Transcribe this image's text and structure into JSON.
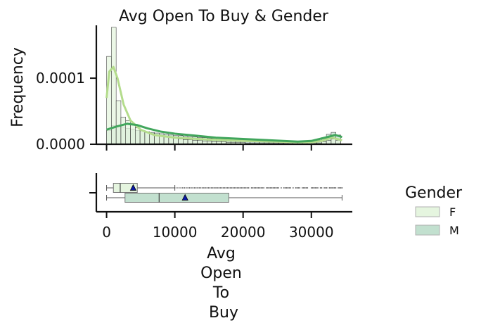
{
  "chart_data": {
    "type": "histogram",
    "title": "Avg Open To Buy & Gender",
    "ylabel": "Frequency",
    "xlabel_lines": [
      "Avg",
      "Open",
      "To",
      "Buy"
    ],
    "xlim": [
      -1500,
      36000
    ],
    "ylim": [
      0,
      0.00018
    ],
    "x_ticks": [
      0,
      10000,
      20000,
      30000
    ],
    "x_tick_labels": [
      "0",
      "10000",
      "20000",
      "30000"
    ],
    "y_ticks": [
      0,
      0.0001
    ],
    "y_tick_labels": [
      "0.0000",
      "0.0001"
    ],
    "bin_width": 700,
    "series": [
      {
        "name": "F",
        "color": "#e5f5df",
        "kde_color": "#b4dc8c",
        "hist_density": [
          0.000133,
          0.000177,
          6.6e-05,
          4.1e-05,
          3.6e-05,
          2.9e-05,
          2.5e-05,
          2.1e-05,
          1.8e-05,
          1.6e-05,
          1.4e-05,
          1.2e-05,
          1.1e-05,
          1e-05,
          9e-06,
          8e-06,
          7e-06,
          7e-06,
          6e-06,
          6e-06,
          5e-06,
          5e-06,
          4e-06,
          4e-06,
          4e-06,
          3e-06,
          3e-06,
          3e-06,
          3e-06,
          2e-06,
          2e-06,
          2e-06,
          2e-06,
          2e-06,
          2e-06,
          2e-06,
          2e-06,
          2e-06,
          2e-06,
          2e-06,
          2e-06,
          2e-06,
          2e-06,
          2e-06,
          2e-06,
          4e-06,
          6e-06,
          8e-06,
          6e-06
        ],
        "kde": [
          [
            0,
            7e-05
          ],
          [
            400,
            0.00011
          ],
          [
            1000,
            0.000117
          ],
          [
            1600,
            0.0001
          ],
          [
            2500,
            6e-05
          ],
          [
            3500,
            3.6e-05
          ],
          [
            5000,
            2.2e-05
          ],
          [
            7000,
            1.4e-05
          ],
          [
            10000,
            1e-05
          ],
          [
            15000,
            7e-06
          ],
          [
            20000,
            5e-06
          ],
          [
            25000,
            4e-06
          ],
          [
            28000,
            3e-06
          ],
          [
            30000,
            3e-06
          ],
          [
            31500,
            5e-06
          ],
          [
            33000,
            1e-05
          ],
          [
            34500,
            6e-06
          ]
        ],
        "box": {
          "whisker_low": 0,
          "q1": 1000,
          "median": 2000,
          "q3": 4500,
          "whisker_high": 10000,
          "mean": 3900,
          "outliers_range": [
            10000,
            34500
          ]
        }
      },
      {
        "name": "M",
        "color": "#c2e0cf",
        "kde_color": "#41a65c",
        "hist_density": [
          2.1e-05,
          2.8e-05,
          2.7e-05,
          2.6e-05,
          2.4e-05,
          2.3e-05,
          2.1e-05,
          2e-05,
          1.9e-05,
          1.8e-05,
          1.7e-05,
          1.6e-05,
          1.5e-05,
          1.4e-05,
          1.3e-05,
          1.3e-05,
          1.2e-05,
          1.1e-05,
          1.1e-05,
          1e-05,
          1e-05,
          9e-06,
          9e-06,
          9e-06,
          8e-06,
          8e-06,
          8e-06,
          7e-06,
          7e-06,
          7e-06,
          6e-06,
          6e-06,
          6e-06,
          6e-06,
          5e-06,
          5e-06,
          5e-06,
          5e-06,
          5e-06,
          5e-06,
          5e-06,
          5e-06,
          4e-06,
          5e-06,
          6e-06,
          1e-05,
          1.5e-05,
          1.8e-05,
          1.4e-05
        ],
        "kde": [
          [
            0,
            2.2e-05
          ],
          [
            1500,
            2.7e-05
          ],
          [
            3000,
            3.1e-05
          ],
          [
            4500,
            2.9e-05
          ],
          [
            6000,
            2.4e-05
          ],
          [
            8000,
            1.9e-05
          ],
          [
            10000,
            1.6e-05
          ],
          [
            13000,
            1.3e-05
          ],
          [
            16000,
            1e-05
          ],
          [
            20000,
            8e-06
          ],
          [
            24000,
            6e-06
          ],
          [
            28000,
            4e-06
          ],
          [
            30000,
            5e-06
          ],
          [
            32000,
            1e-05
          ],
          [
            33500,
            1.4e-05
          ],
          [
            34500,
            1.1e-05
          ]
        ],
        "box": {
          "whisker_low": 0,
          "q1": 2700,
          "median": 7700,
          "q3": 17900,
          "whisker_high": 34500,
          "mean": 11500
        }
      }
    ],
    "legend": {
      "title": "Gender",
      "entries": [
        "F",
        "M"
      ],
      "position": "right"
    }
  }
}
